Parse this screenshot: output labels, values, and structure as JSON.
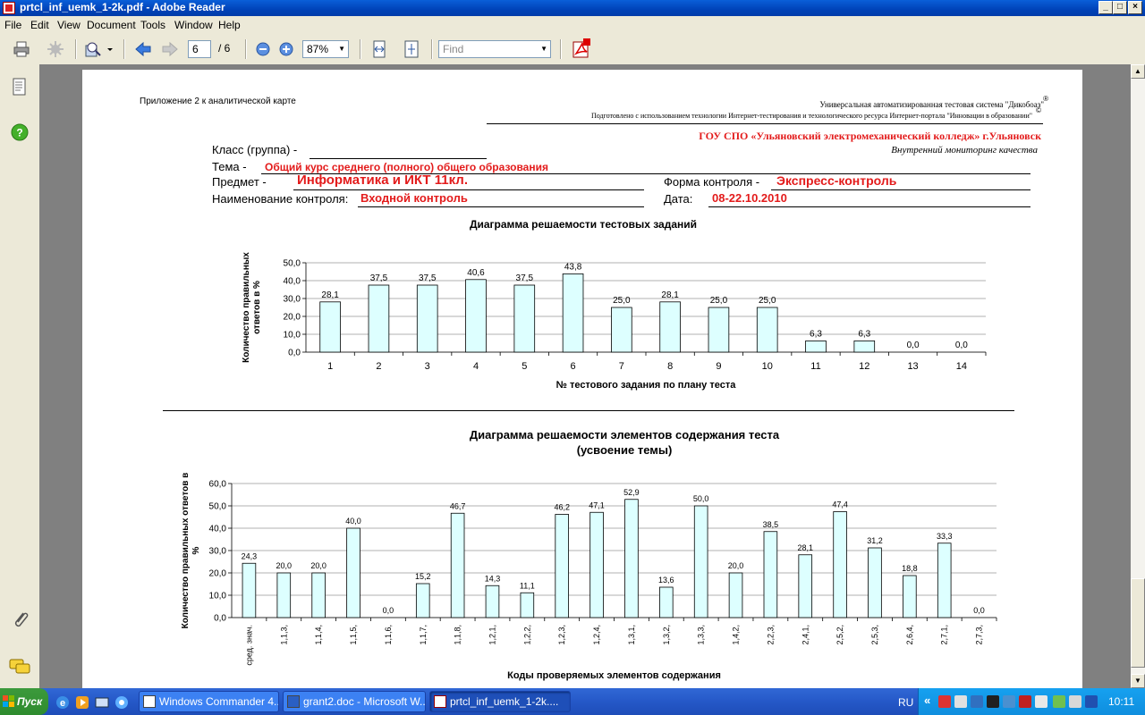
{
  "window": {
    "title": "prtcl_inf_uemk_1-2k.pdf - Adobe Reader",
    "min": "_",
    "max": "□",
    "close": "×"
  },
  "menu": [
    "File",
    "Edit",
    "View",
    "Document",
    "Tools",
    "Window",
    "Help"
  ],
  "toolbar": {
    "page_current": "6",
    "page_total": "/ 6",
    "zoom": "87%",
    "find_placeholder": "Find"
  },
  "document": {
    "appendix": "Приложение 2 к аналитической карте",
    "system_line": "Универсальная автоматизированная тестовая система \"Дикобоаз\"",
    "system_mark": "®",
    "prepared_line": "Подготовлено с использованием технологии Интернет-тестирования и технологического ресурса  Интернет-портала \"Инновации в образовании\"",
    "prepared_mark": "©",
    "college": "ГОУ СПО «Ульяновский электромеханический колледж» г.Ульяновск",
    "monitoring": "Внутренний мониторинг  качества",
    "class_label": "Класс (группа) -",
    "class_value": "",
    "theme_label": "Тема -",
    "theme_value": "Общий курс среднего (полного) общего образования",
    "subject_label": "Предмет  -",
    "subject_value": "Информатика и ИКТ 11кл.",
    "form_label": "Форма контроля -",
    "form_value": "Экспресс-контроль",
    "control_label": "Наименование контроля:",
    "control_value": "Входной контроль",
    "date_label": "Дата:",
    "date_value": "08-22.10.2010"
  },
  "chart_data": [
    {
      "type": "bar",
      "title": "Диаграмма решаемости тестовых заданий",
      "xlabel": "№ тестового задания по плану теста",
      "ylabel": "Количество правильных ответов в %",
      "ylabel_lines": [
        "Количество правильных",
        "ответов в %"
      ],
      "ylim": [
        0,
        50
      ],
      "yticks": [
        "0,0",
        "10,0",
        "20,0",
        "30,0",
        "40,0",
        "50,0"
      ],
      "categories": [
        "1",
        "2",
        "3",
        "4",
        "5",
        "6",
        "7",
        "8",
        "9",
        "10",
        "11",
        "12",
        "13",
        "14"
      ],
      "values": [
        28.1,
        37.5,
        37.5,
        40.6,
        37.5,
        43.8,
        25.0,
        28.1,
        25.0,
        25.0,
        6.3,
        6.3,
        0.0,
        0.0
      ],
      "labels": [
        "28,1",
        "37,5",
        "37,5",
        "40,6",
        "37,5",
        "43,8",
        "25,0",
        "28,1",
        "25,0",
        "25,0",
        "6,3",
        "6,3",
        "0,0",
        "0,0"
      ],
      "grid": true,
      "bar_color": "#DDFFFF"
    },
    {
      "type": "bar",
      "title": "Диаграмма решаемости элементов содержания теста",
      "subtitle": "(усвоение темы)",
      "xlabel": "Коды проверяемых элементов содержания",
      "ylabel": "Количество правильных ответов в %",
      "ylabel_lines": [
        "Количество правильных ответов в",
        "%"
      ],
      "ylim": [
        0,
        60
      ],
      "yticks": [
        "0,0",
        "10,0",
        "20,0",
        "30,0",
        "40,0",
        "50,0",
        "60,0"
      ],
      "categories": [
        "сред. знач.",
        "1,1,3,",
        "1,1,4,",
        "1,1,5,",
        "1,1,6,",
        "1,1,7,",
        "1,1,8,",
        "1,2,1,",
        "1,2,2,",
        "1,2,3,",
        "1,2,4,",
        "1,3,1,",
        "1,3,2,",
        "1,3,3,",
        "1,4,2,",
        "2,2,3,",
        "2,4,1,",
        "2,5,2,",
        "2,5,3,",
        "2,6,4,",
        "2,7,1,",
        "2,7,3,"
      ],
      "values": [
        24.3,
        20.0,
        20.0,
        40.0,
        0.0,
        15.2,
        46.7,
        14.3,
        11.1,
        46.2,
        47.1,
        52.9,
        13.6,
        50.0,
        20.0,
        38.5,
        28.1,
        47.4,
        31.2,
        18.8,
        33.3,
        0.0
      ],
      "labels": [
        "24,3",
        "20,0",
        "20,0",
        "40,0",
        "0,0",
        "15,2",
        "46,7",
        "14,3",
        "11,1",
        "46,2",
        "47,1",
        "52,9",
        "13,6",
        "50,0",
        "20,0",
        "38,5",
        "28,1",
        "47,4",
        "31,2",
        "18,8",
        "33,3",
        "0,0"
      ],
      "grid": true,
      "bar_color": "#DDFFFF"
    }
  ],
  "taskbar": {
    "start": "Пуск",
    "tasks": [
      "Windows Commander 4....",
      "grant2.doc - Microsoft W...",
      "prtcl_inf_uemk_1-2k...."
    ],
    "lang": "RU",
    "clock": "10:11"
  },
  "colors": {
    "accent_red": "#E31B1B",
    "taskbar": "#2558C8",
    "titlebar": "#0A5FD8"
  }
}
